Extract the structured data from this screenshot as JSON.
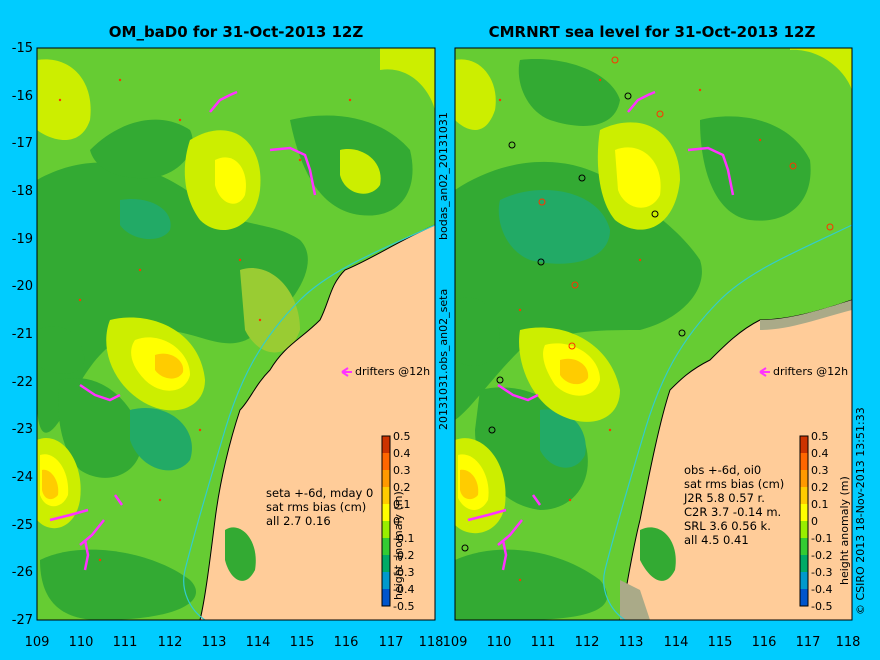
{
  "colors": {
    "background": "#00ccff",
    "land": "#ffcc99",
    "drift": "#ff33ff",
    "contour_levels": [
      "#66cc33",
      "#33aa33",
      "#22aa66",
      "#99cc33",
      "#ccee00",
      "#ffff00",
      "#ffcc00",
      "#ff9900"
    ]
  },
  "left_panel": {
    "title": "OM_baD0 for 31-Oct-2013 12Z",
    "y_ticks": [
      "-15",
      "-16",
      "-17",
      "-18",
      "-19",
      "-20",
      "-21",
      "-22",
      "-23",
      "-24",
      "-25",
      "-26",
      "-27"
    ],
    "x_ticks": [
      "109",
      "110",
      "111",
      "112",
      "113",
      "114",
      "115",
      "116",
      "117",
      "118"
    ],
    "drifters_label": "drifters @12h",
    "stats_lines": [
      "seta +-6d, mday 0",
      "sat rms bias (cm)",
      "all 2.7 0.16"
    ]
  },
  "right_panel": {
    "title": "CMRNRT sea level  for 31-Oct-2013 12Z",
    "x_ticks": [
      "109",
      "110",
      "111",
      "112",
      "113",
      "114",
      "115",
      "116",
      "117",
      "118"
    ],
    "drifters_label": "drifters @12h",
    "stats_lines": [
      "obs +-6d, oi0",
      "sat rms bias (cm)",
      " J2R   5.8 0.57 r.",
      " C2R   3.7 -0.14 m.",
      " SRL   3.6 0.56 k.",
      " all   4.5 0.41"
    ]
  },
  "colorbar": {
    "label": "height anomaly (m)",
    "ticks": [
      "0.5",
      "0.4",
      "0.3",
      "0.2",
      "0.1",
      "0",
      "-0.1",
      "-0.2",
      "-0.3",
      "-0.4",
      "-0.5"
    ],
    "colors": [
      "#cc3300",
      "#ff6600",
      "#ff9900",
      "#ffcc00",
      "#ffff00",
      "#99ee00",
      "#33cc33",
      "#00aa66",
      "#0099cc",
      "#0055cc",
      "#000088"
    ]
  },
  "side_labels": {
    "middle_top": "bodas_an02_20131031",
    "middle_bottom": "20131031.obs_an02_seta",
    "right_copyright": "© CSIRO 2013  18-Nov-2013 13:51:33"
  }
}
